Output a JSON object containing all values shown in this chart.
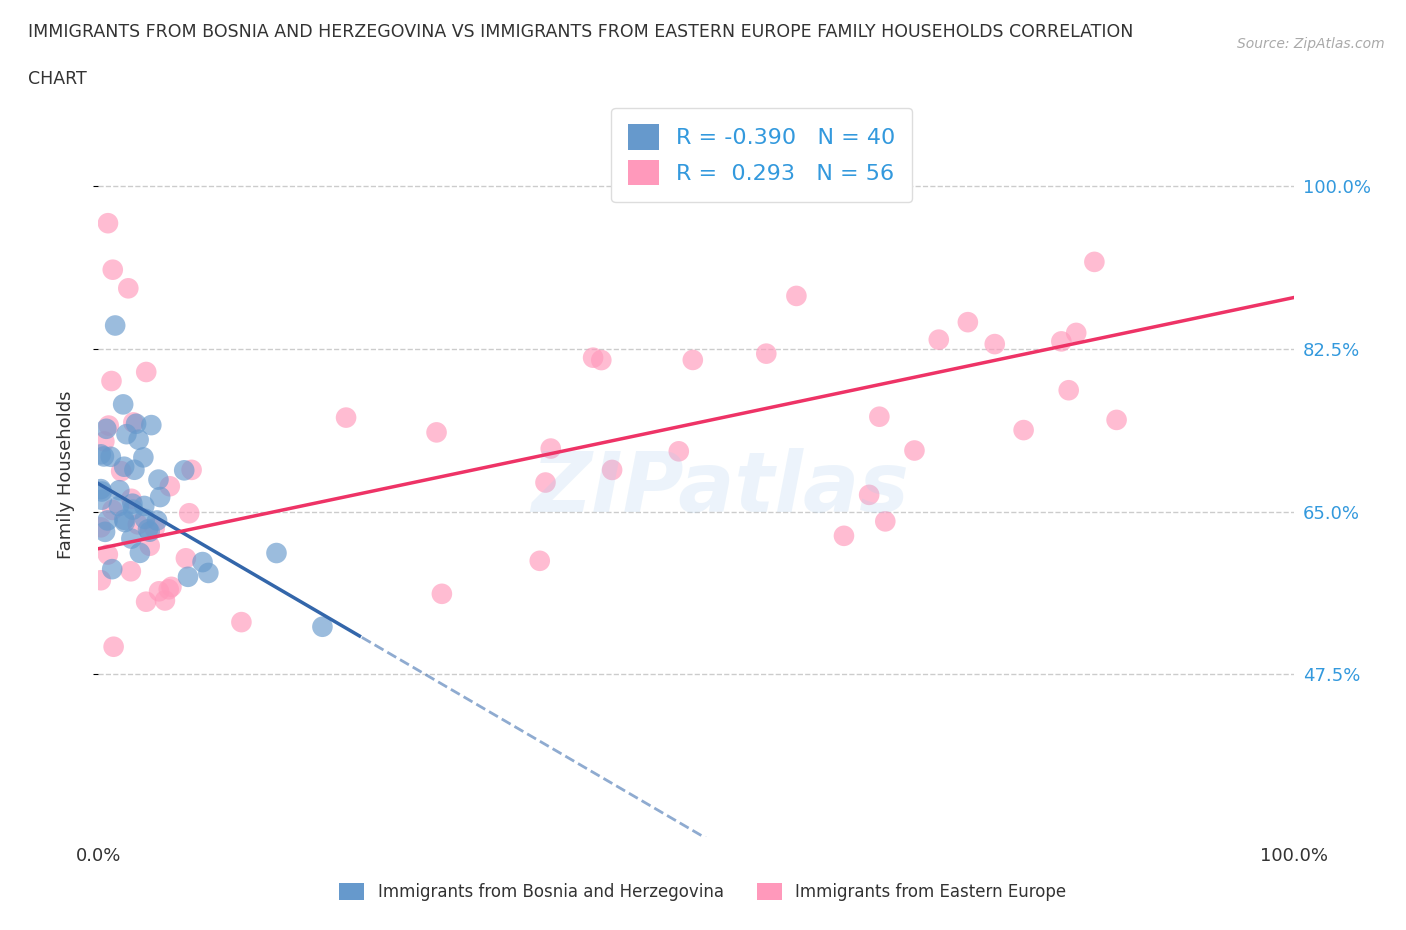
{
  "title_line1": "IMMIGRANTS FROM BOSNIA AND HERZEGOVINA VS IMMIGRANTS FROM EASTERN EUROPE FAMILY HOUSEHOLDS CORRELATION",
  "title_line2": "CHART",
  "source_text": "Source: ZipAtlas.com",
  "ylabel": "Family Households",
  "x_min": 0.0,
  "x_max": 100.0,
  "y_min": 30.0,
  "y_max": 108.0,
  "yticks": [
    47.5,
    65.0,
    82.5,
    100.0
  ],
  "ytick_labels": [
    "47.5%",
    "65.0%",
    "82.5%",
    "100.0%"
  ],
  "grid_color": "#cccccc",
  "blue_color": "#6699cc",
  "pink_color": "#ff99bb",
  "blue_R": -0.39,
  "blue_N": 40,
  "pink_R": 0.293,
  "pink_N": 56,
  "legend_label_blue": "Immigrants from Bosnia and Herzegovina",
  "legend_label_pink": "Immigrants from Eastern Europe",
  "watermark": "ZIPatlas",
  "blue_trend_m": -0.75,
  "blue_trend_b": 68.0,
  "blue_trend_solid_end": 22.0,
  "blue_trend_dash_end": 100.0,
  "pink_trend_m": 0.27,
  "pink_trend_b": 61.0
}
